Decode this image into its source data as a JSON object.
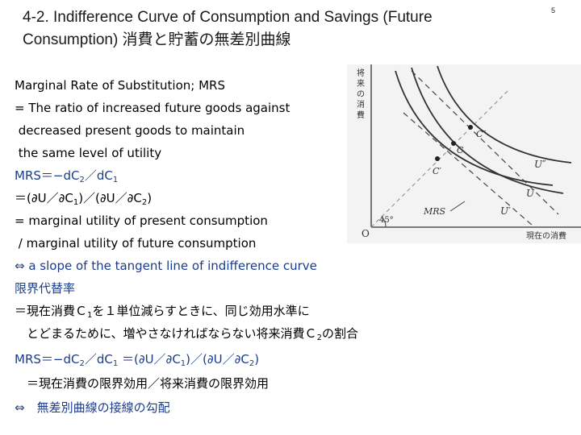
{
  "slide": {
    "title_line1": "4-2.  Indifference Curve of Consumption and Savings (Future",
    "title_line2": "Consumption) 消費と貯蓄の無差別曲線",
    "number": "5"
  },
  "body": {
    "l1": "Marginal Rate of Substitution; MRS",
    "l2": "= The ratio of increased future goods against",
    "l3": " decreased present goods to maintain",
    "l4": " the same level of utility",
    "l5a": "MRS＝−dC",
    "l5b": "2",
    "l5c": "／dC",
    "l5d": "1",
    "l6a": "＝(∂U／∂C",
    "l6b": "1",
    "l6c": ")／(∂U／∂C",
    "l6d": "2",
    "l6e": ")",
    "l7": "= marginal utility of present consumption",
    "l8": " / marginal utility of future consumption",
    "l9": "⇔ a slope of the tangent line of indifference curve",
    "l10": "限界代替率",
    "l11a": "＝現在消費Ｃ",
    "l11b": "1",
    "l11c": "を１単位減らすときに、同じ効用水準に",
    "l12a": "　とどまるために、増やさなければならない将来消費Ｃ",
    "l12b": "2",
    "l12c": "の割合",
    "l13a": "MRS＝−dC",
    "l13b": "2",
    "l13c": "／dC",
    "l13d": "1",
    "l13e": " ＝(∂U／∂C",
    "l13f": "1",
    "l13g": ")／(∂U／∂C",
    "l13h": "2",
    "l13i": ")",
    "l14": "　＝現在消費の限界効用／将来消費の限界効用",
    "l15": "⇔　無差別曲線の接線の勾配"
  },
  "graph": {
    "y_axis_label": [
      "将",
      "来",
      "の",
      "消",
      "費"
    ],
    "x_axis_label": "現在の消費",
    "origin": "O",
    "angle": "45°",
    "mrs": "MRS",
    "point_c2": "C″",
    "point_c": "C",
    "point_c1": "C′",
    "curve_u2": "U″",
    "curve_u": "U",
    "curve_u1": "U′"
  }
}
